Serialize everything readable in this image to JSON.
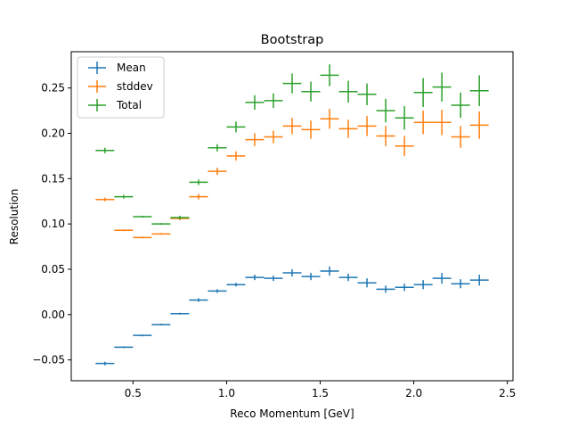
{
  "chart_data": {
    "type": "scatter",
    "title": "Bootstrap",
    "xlabel": "Reco Momentum [GeV]",
    "ylabel": "Resolution",
    "xlim": [
      0.17,
      2.53
    ],
    "ylim": [
      -0.073,
      0.29
    ],
    "xticks": [
      "0.5",
      "1.0",
      "1.5",
      "2.0",
      "2.5"
    ],
    "yticks": [
      "−0.05",
      "0.00",
      "0.05",
      "0.10",
      "0.15",
      "0.20",
      "0.25"
    ],
    "grid": false,
    "legend_position": "top-left",
    "x_half_width": 0.05,
    "series": [
      {
        "name": "Mean",
        "color": "#1f77b4",
        "x": [
          0.35,
          0.45,
          0.55,
          0.65,
          0.75,
          0.85,
          0.95,
          1.05,
          1.15,
          1.25,
          1.35,
          1.45,
          1.55,
          1.65,
          1.75,
          1.85,
          1.95,
          2.05,
          2.15,
          2.25,
          2.35
        ],
        "y": [
          -0.054,
          -0.036,
          -0.023,
          -0.011,
          0.001,
          0.016,
          0.026,
          0.033,
          0.041,
          0.04,
          0.046,
          0.042,
          0.048,
          0.041,
          0.035,
          0.028,
          0.03,
          0.033,
          0.04,
          0.034,
          0.038
        ],
        "yerr": [
          0.002,
          0.001,
          0.001,
          0.001,
          0.001,
          0.002,
          0.002,
          0.002,
          0.003,
          0.003,
          0.004,
          0.004,
          0.005,
          0.004,
          0.005,
          0.004,
          0.004,
          0.005,
          0.006,
          0.005,
          0.006
        ]
      },
      {
        "name": "stddev",
        "color": "#ff7f0e",
        "x": [
          0.35,
          0.45,
          0.55,
          0.65,
          0.75,
          0.85,
          0.95,
          1.05,
          1.15,
          1.25,
          1.35,
          1.45,
          1.55,
          1.65,
          1.75,
          1.85,
          1.95,
          2.05,
          2.15,
          2.25,
          2.35
        ],
        "y": [
          0.127,
          0.093,
          0.085,
          0.089,
          0.106,
          0.13,
          0.158,
          0.175,
          0.193,
          0.196,
          0.208,
          0.204,
          0.216,
          0.205,
          0.208,
          0.197,
          0.186,
          0.212,
          0.212,
          0.196,
          0.209
        ],
        "yerr": [
          0.002,
          0.001,
          0.001,
          0.001,
          0.002,
          0.003,
          0.004,
          0.005,
          0.007,
          0.007,
          0.009,
          0.01,
          0.011,
          0.01,
          0.011,
          0.011,
          0.011,
          0.013,
          0.014,
          0.012,
          0.015
        ]
      },
      {
        "name": "Total",
        "color": "#2ca02c",
        "x": [
          0.35,
          0.45,
          0.55,
          0.65,
          0.75,
          0.85,
          0.95,
          1.05,
          1.15,
          1.25,
          1.35,
          1.45,
          1.55,
          1.65,
          1.75,
          1.85,
          1.95,
          2.05,
          2.15,
          2.25,
          2.35
        ],
        "y": [
          0.181,
          0.13,
          0.108,
          0.1,
          0.107,
          0.146,
          0.184,
          0.207,
          0.234,
          0.236,
          0.255,
          0.246,
          0.264,
          0.246,
          0.243,
          0.225,
          0.217,
          0.245,
          0.251,
          0.231,
          0.247
        ],
        "yerr": [
          0.003,
          0.002,
          0.001,
          0.001,
          0.002,
          0.003,
          0.004,
          0.006,
          0.008,
          0.008,
          0.011,
          0.011,
          0.012,
          0.012,
          0.012,
          0.013,
          0.013,
          0.016,
          0.016,
          0.014,
          0.017
        ]
      }
    ]
  }
}
